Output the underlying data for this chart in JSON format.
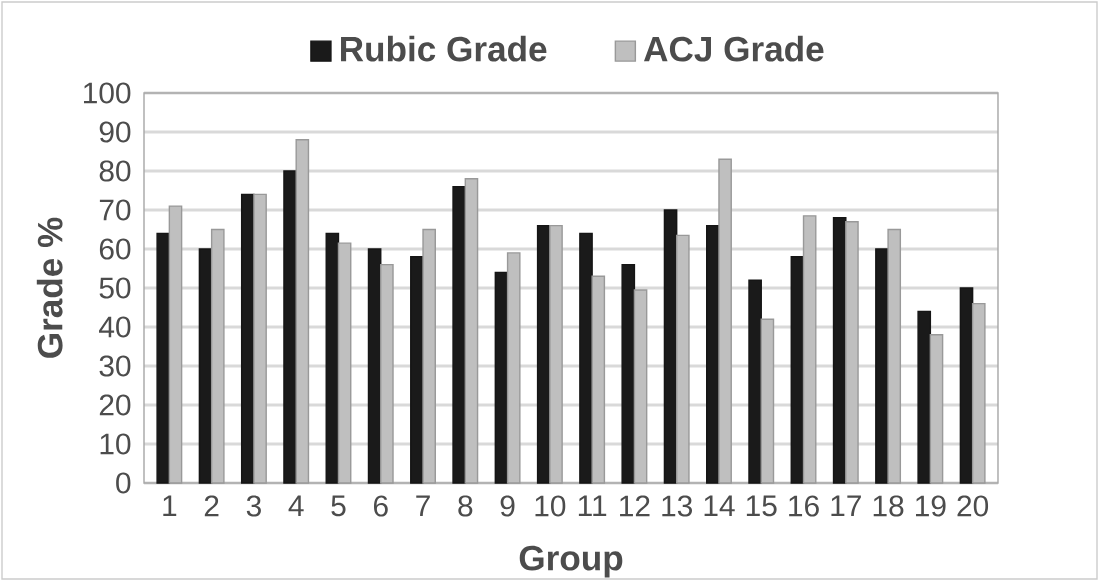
{
  "chart_data": {
    "type": "bar",
    "xlabel": "Group",
    "ylabel": "Grade %",
    "categories": [
      "1",
      "2",
      "3",
      "4",
      "5",
      "6",
      "7",
      "8",
      "9",
      "10",
      "11",
      "12",
      "13",
      "14",
      "15",
      "16",
      "17",
      "18",
      "19",
      "20"
    ],
    "series": [
      {
        "name": "Rubic Grade",
        "color": "#1a1a1a",
        "values": [
          64,
          60,
          74,
          80,
          64,
          60,
          58,
          76,
          54,
          66,
          64,
          56,
          70,
          66,
          52,
          58,
          68,
          60,
          44,
          50
        ]
      },
      {
        "name": "ACJ Grade",
        "color": "#bfbfbf",
        "values": [
          71,
          65,
          74,
          88,
          61.5,
          56,
          65,
          78,
          59,
          66,
          53,
          49.5,
          63.5,
          83,
          42,
          68.5,
          67,
          65,
          38,
          46
        ]
      }
    ],
    "ylim": [
      0,
      100
    ],
    "yticks": [
      0,
      10,
      20,
      30,
      40,
      50,
      60,
      70,
      80,
      90,
      100
    ],
    "grid": "y",
    "legend": "top"
  }
}
